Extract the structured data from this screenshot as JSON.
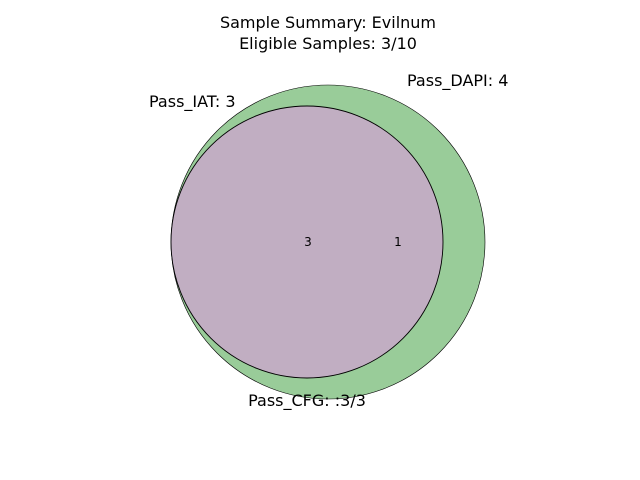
{
  "chart_data": {
    "type": "venn",
    "title_lines": [
      "Sample Summary: Evilnum",
      "Eligible Samples: 3/10"
    ],
    "sets": [
      {
        "name": "Pass_DAPI",
        "label": "Pass_DAPI: 4",
        "size": 4,
        "color": "#99cc99"
      },
      {
        "name": "Pass_IAT",
        "label": "Pass_IAT: 3",
        "size": 3,
        "color": "#c1aec2"
      }
    ],
    "regions": [
      {
        "key": "intersection",
        "sets": [
          "Pass_DAPI",
          "Pass_IAT"
        ],
        "value": 3,
        "label": "3"
      },
      {
        "key": "dapi_only",
        "sets": [
          "Pass_DAPI"
        ],
        "value": 1,
        "label": "1"
      }
    ],
    "footer_label": "Pass_CFG: :3/3"
  }
}
